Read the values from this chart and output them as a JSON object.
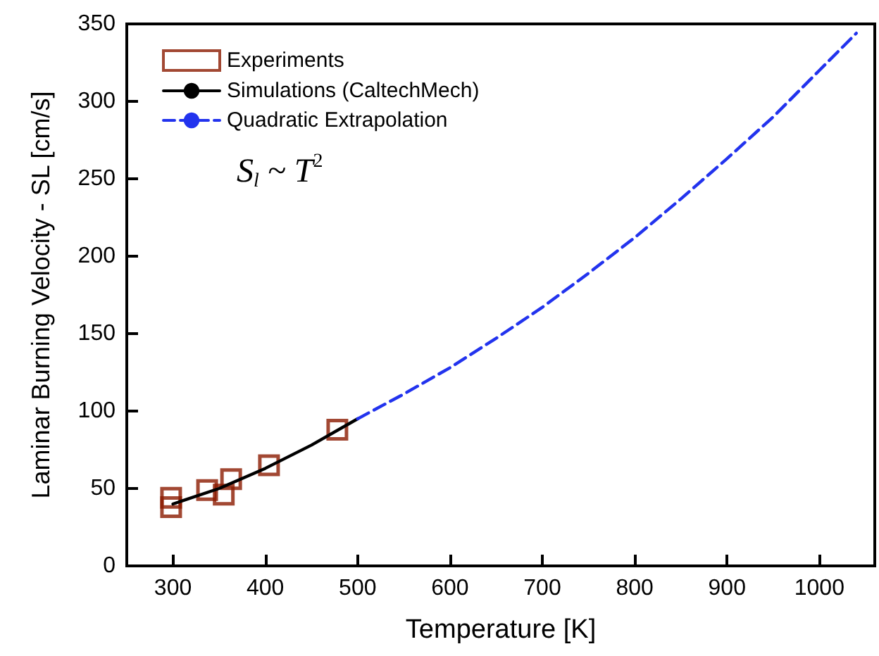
{
  "chart_data": {
    "type": "line",
    "xlabel": "Temperature [K]",
    "ylabel": "Laminar Burning Velocity - SL [cm/s]",
    "xlim": [
      250,
      1060
    ],
    "xticks": [
      300,
      400,
      500,
      600,
      700,
      800,
      900,
      1000
    ],
    "ylim": [
      0,
      350
    ],
    "yticks": [
      0,
      50,
      100,
      150,
      200,
      250,
      300,
      350
    ],
    "grid": false,
    "legend": "top left",
    "annotations": [
      "S$_{l}$ ~ T$^{2}$"
    ],
    "series": [
      {
        "name": "Experiments",
        "type": "scatter",
        "marker": "square",
        "color": "#8b1a00",
        "x": [
          298,
          298,
          337,
          355,
          363,
          404,
          478
        ],
        "values": [
          44,
          38,
          49,
          46,
          56,
          65,
          88
        ]
      },
      {
        "name": "Simulations (CaltechMech)",
        "line_style": "solid",
        "color": "#000000",
        "x": [
          300,
          350,
          400,
          450,
          500
        ],
        "values": [
          40,
          50,
          63,
          78,
          95
        ]
      },
      {
        "name": "Quadratic Extrapolation",
        "line_style": "dashed",
        "color": "#2233ee",
        "x": [
          500,
          550,
          600,
          650,
          700,
          750,
          800,
          850,
          900,
          950,
          1000,
          1040
        ],
        "values": [
          95,
          111,
          128,
          147,
          167,
          189,
          212,
          237,
          263,
          290,
          320,
          344
        ]
      }
    ]
  }
}
